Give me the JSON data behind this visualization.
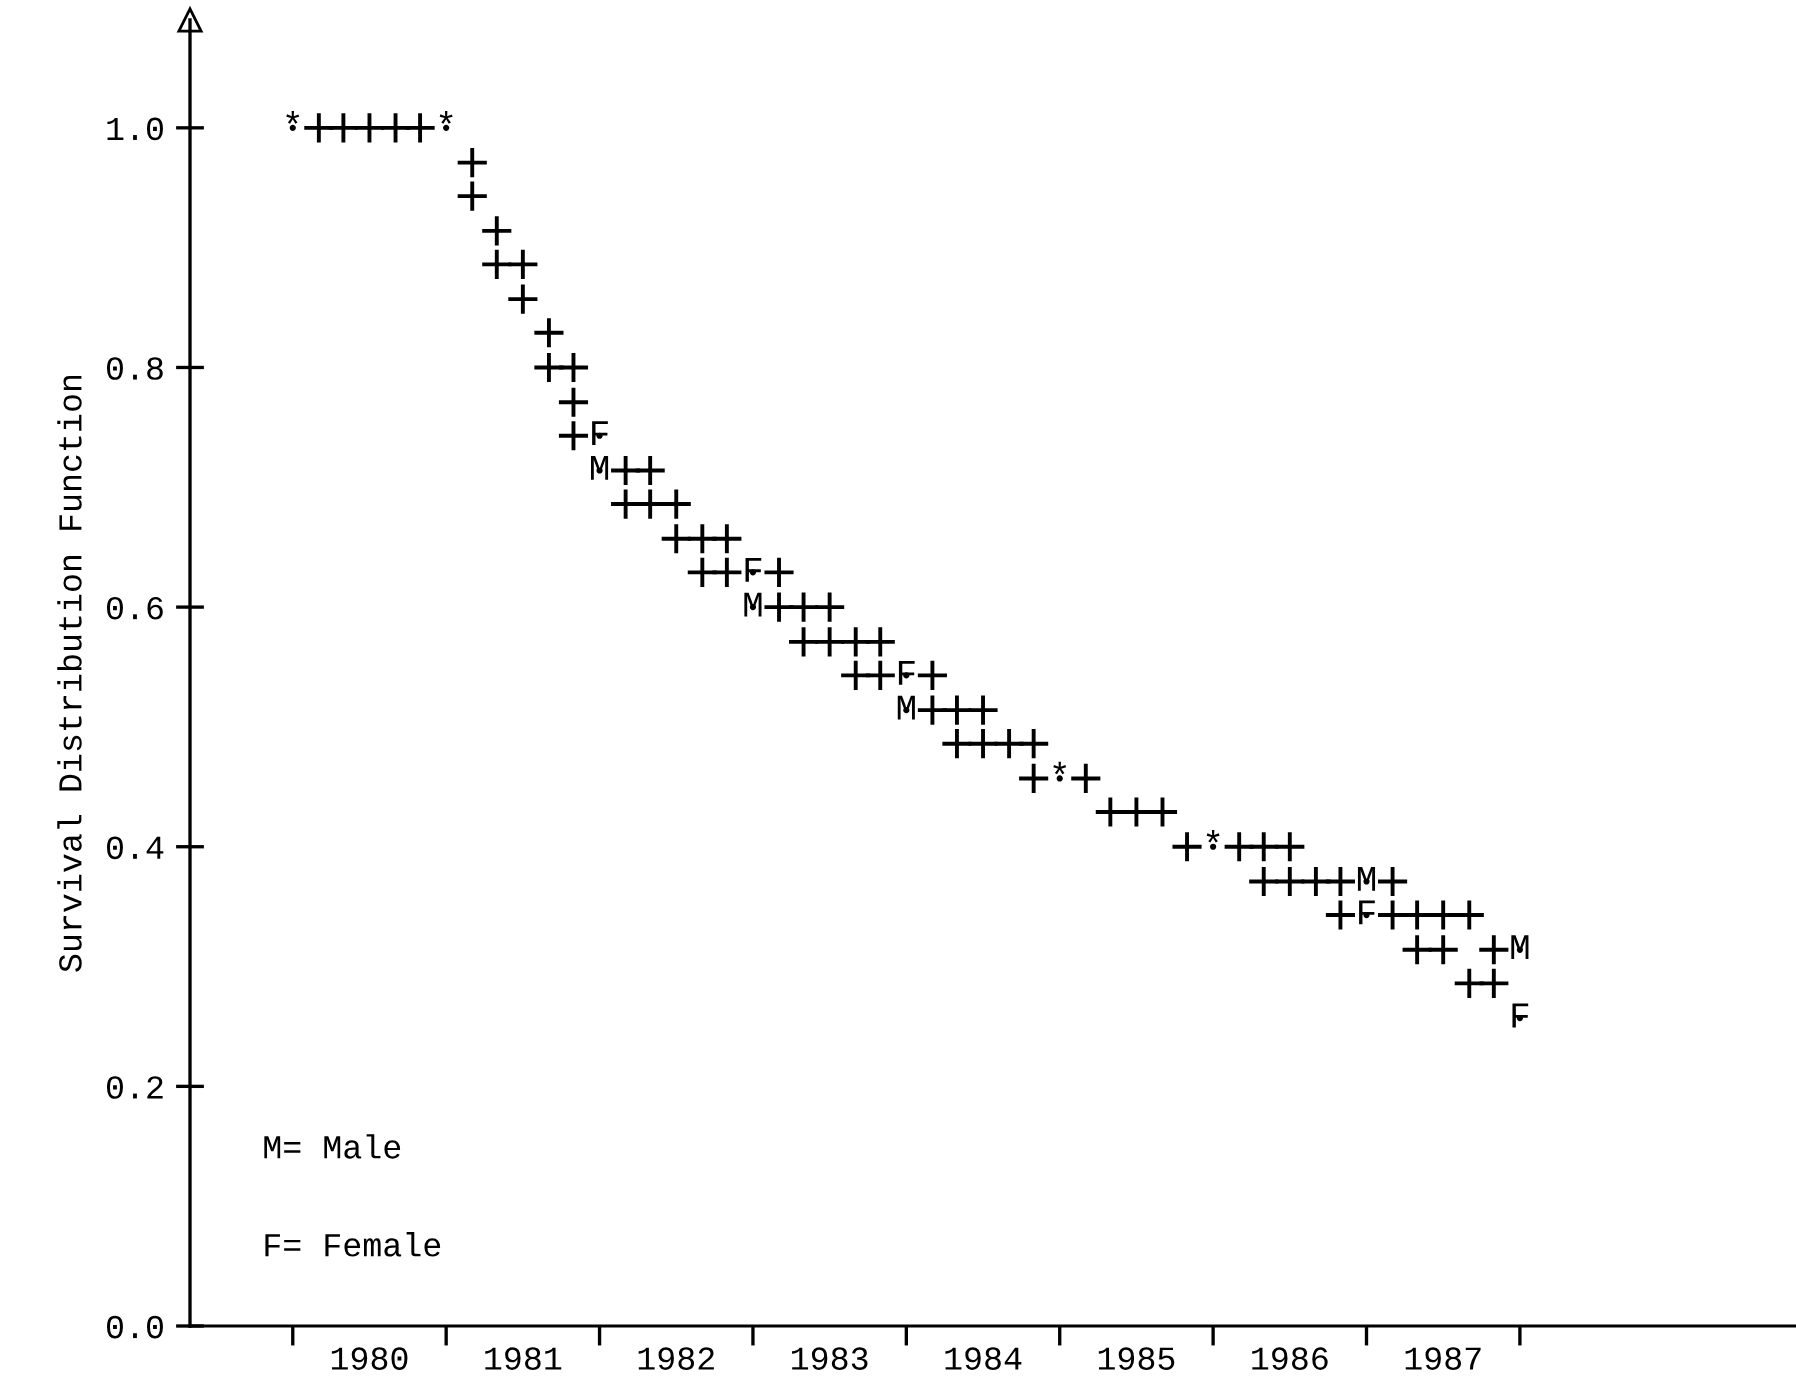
{
  "chart_data": {
    "type": "scatter",
    "ylabel": "Survival Distribution Function",
    "xlim": [
      1979.33,
      1989.8
    ],
    "ylim": [
      0,
      1.09
    ],
    "xticks": [
      {
        "value": 1980,
        "label": null
      },
      {
        "value": 1980.5,
        "label": "1980"
      },
      {
        "value": 1981,
        "label": null
      },
      {
        "value": 1981.5,
        "label": "1981"
      },
      {
        "value": 1982,
        "label": null
      },
      {
        "value": 1982.5,
        "label": "1982"
      },
      {
        "value": 1983,
        "label": null
      },
      {
        "value": 1983.5,
        "label": "1983"
      },
      {
        "value": 1984,
        "label": null
      },
      {
        "value": 1984.5,
        "label": "1984"
      },
      {
        "value": 1985,
        "label": null
      },
      {
        "value": 1985.5,
        "label": "1985"
      },
      {
        "value": 1986,
        "label": null
      },
      {
        "value": 1986.5,
        "label": "1986"
      },
      {
        "value": 1987,
        "label": null
      },
      {
        "value": 1987.5,
        "label": "1987"
      },
      {
        "value": 1988,
        "label": null
      }
    ],
    "yticks": [
      {
        "value": 0,
        "label": "0.0"
      },
      {
        "value": 0.2,
        "label": "0.2"
      },
      {
        "value": 0.4,
        "label": "0.4"
      },
      {
        "value": 0.6,
        "label": "0.6"
      },
      {
        "value": 0.8,
        "label": "0.8"
      },
      {
        "value": 1,
        "label": "1.0"
      }
    ],
    "marker": "cross",
    "grid": false,
    "series": [
      {
        "color": "#000000",
        "x": [
          1980.17,
          1980.33,
          1980.5,
          1980.67,
          1980.83,
          1981.17,
          1981.17,
          1981.33,
          1981.33,
          1981.5,
          1981.5,
          1981.67,
          1981.67,
          1981.83,
          1981.83,
          1981.83,
          1982.17,
          1982.33,
          1982.17,
          1982.33,
          1982.5,
          1982.5,
          1982.67,
          1982.83,
          1982.67,
          1982.83,
          1983.17,
          1983.17,
          1983.33,
          1983.5,
          1983.33,
          1983.5,
          1983.67,
          1983.83,
          1983.67,
          1983.83,
          1984.17,
          1984.17,
          1984.33,
          1984.5,
          1984.33,
          1984.5,
          1984.67,
          1984.83,
          1984.83,
          1985.17,
          1985.33,
          1985.5,
          1985.67,
          1985.83,
          1986.17,
          1986.33,
          1986.5,
          1986.33,
          1986.5,
          1986.67,
          1986.83,
          1987.17,
          1986.83,
          1987.17,
          1987.33,
          1987.5,
          1987.67,
          1987.33,
          1987.5,
          1987.83,
          1987.67,
          1987.83
        ],
        "values": [
          1.0,
          1.0,
          1.0,
          1.0,
          1.0,
          0.971,
          0.943,
          0.914,
          0.886,
          0.886,
          0.857,
          0.829,
          0.8,
          0.8,
          0.771,
          0.743,
          0.714,
          0.714,
          0.686,
          0.686,
          0.686,
          0.657,
          0.657,
          0.657,
          0.629,
          0.629,
          0.629,
          0.6,
          0.6,
          0.6,
          0.571,
          0.571,
          0.571,
          0.571,
          0.543,
          0.543,
          0.543,
          0.514,
          0.514,
          0.514,
          0.486,
          0.486,
          0.486,
          0.486,
          0.457,
          0.457,
          0.429,
          0.429,
          0.429,
          0.4,
          0.4,
          0.4,
          0.4,
          0.371,
          0.371,
          0.371,
          0.371,
          0.371,
          0.343,
          0.343,
          0.343,
          0.343,
          0.343,
          0.314,
          0.314,
          0.314,
          0.286,
          0.286
        ]
      },
      {
        "color": "#000000",
        "marker": "circle",
        "x": [
          1980,
          1981,
          1985,
          1986
        ],
        "values": [
          1.0,
          1.0,
          0.457,
          0.4
        ],
        "value_labels": [
          "*",
          "*",
          "*",
          "*"
        ]
      },
      {
        "color": "#000000",
        "marker": "circle",
        "x": [
          1982,
          1983,
          1984,
          1987,
          1988
        ],
        "values": [
          0.714,
          0.6,
          0.514,
          0.371,
          0.314
        ],
        "value_labels": [
          "M",
          "M",
          "M",
          "M",
          "M"
        ]
      },
      {
        "color": "#000000",
        "marker": "circle",
        "x": [
          1982,
          1983,
          1984,
          1987,
          1988
        ],
        "values": [
          0.743,
          0.629,
          0.543,
          0.343,
          0.257
        ],
        "value_labels": [
          "F",
          "F",
          "F",
          "F",
          "F"
        ]
      }
    ],
    "annotations": [
      "M= Male",
      "F= Female"
    ]
  }
}
